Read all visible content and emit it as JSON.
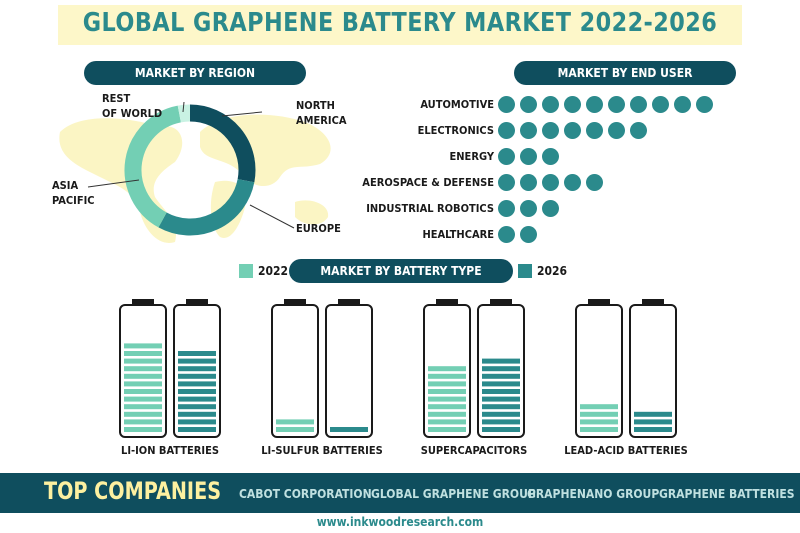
{
  "title": "GLOBAL GRAPHENE BATTERY MARKET 2022-2026",
  "colors": {
    "dark": "#0f4e5e",
    "teal": "#2b8a8c",
    "mint": "#73cfb4",
    "cream": "#fdf7c9"
  },
  "chart_data": [
    {
      "type": "pie",
      "title": "MARKET BY REGION",
      "slices": [
        {
          "label": "NORTH AMERICA",
          "value": 28,
          "color": "#0f4e5e"
        },
        {
          "label": "EUROPE",
          "value": 30,
          "color": "#2b8a8c"
        },
        {
          "label": "ASIA PACIFIC",
          "value": 39,
          "color": "#73cfb4"
        },
        {
          "label": "REST OF WORLD",
          "value": 3,
          "color": "#c9f2e3"
        }
      ],
      "label_lines": {
        "rest": [
          "REST",
          "OF WORLD"
        ],
        "na": [
          "NORTH",
          "AMERICA"
        ],
        "ap": [
          "ASIA",
          "PACIFIC"
        ],
        "eu": [
          "EUROPE"
        ]
      }
    },
    {
      "type": "bar",
      "title": "MARKET BY END USER",
      "categories": [
        "AUTOMOTIVE",
        "ELECTRONICS",
        "ENERGY",
        "AEROSPACE & DEFENSE",
        "INDUSTRIAL ROBOTICS",
        "HEALTHCARE"
      ],
      "values": [
        10,
        7,
        3,
        5,
        3,
        2
      ]
    },
    {
      "type": "bar",
      "title": "MARKET BY BATTERY TYPE",
      "categories": [
        "LI-ION BATTERIES",
        "LI-SULFUR BATTERIES",
        "SUPERCAPACITORS",
        "LEAD-ACID BATTERIES"
      ],
      "series": [
        {
          "name": "2022",
          "values": [
            12,
            2,
            9,
            4
          ],
          "color": "#73cfb4"
        },
        {
          "name": "2026",
          "values": [
            11,
            1,
            10,
            3
          ],
          "color": "#2b8a8c"
        }
      ]
    }
  ],
  "footer": {
    "title": "TOP COMPANIES",
    "companies": [
      "CABOT CORPORATION",
      "GLOBAL GRAPHENE GROUP",
      "GRAPHENANO GROUP",
      "GRAPHENE BATTERIES"
    ]
  },
  "website": "www.inkwoodresearch.com"
}
